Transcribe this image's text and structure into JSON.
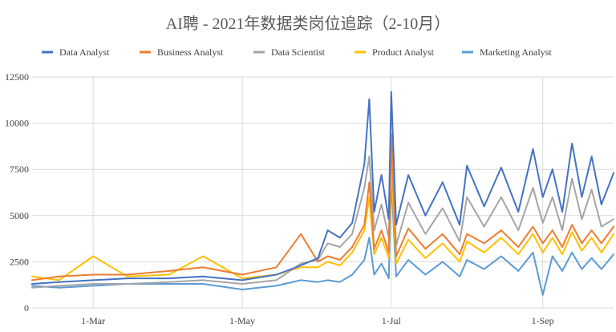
{
  "chart_data": {
    "type": "line",
    "title": "AI聘 - 2021年数据类岗位追踪（2-10月）",
    "xlabel": "",
    "ylabel": "",
    "x_start": "2021-02-04",
    "x_end": "2021-09-30",
    "xtick_labels": [
      "1-Mar",
      "1-May",
      "1-Jul",
      "1-Sep"
    ],
    "xtick_dates": [
      "2021-03-01",
      "2021-05-01",
      "2021-07-01",
      "2021-09-01"
    ],
    "ylim": [
      0,
      12500
    ],
    "yticks": [
      0,
      2500,
      5000,
      7500,
      10000,
      12500
    ],
    "ytick_labels": [
      "0",
      "2500",
      "5000",
      "7500",
      "10000",
      "12500"
    ],
    "grid": true,
    "legend_position": "top",
    "series": [
      {
        "name": "Data Analyst",
        "color": "#4472c4",
        "points": [
          [
            "2021-02-04",
            1300
          ],
          [
            "2021-02-15",
            1400
          ],
          [
            "2021-03-01",
            1500
          ],
          [
            "2021-03-15",
            1600
          ],
          [
            "2021-04-01",
            1600
          ],
          [
            "2021-04-15",
            1700
          ],
          [
            "2021-05-01",
            1500
          ],
          [
            "2021-05-15",
            1800
          ],
          [
            "2021-05-25",
            2300
          ],
          [
            "2021-06-01",
            2700
          ],
          [
            "2021-06-05",
            4200
          ],
          [
            "2021-06-10",
            3800
          ],
          [
            "2021-06-15",
            4600
          ],
          [
            "2021-06-20",
            7800
          ],
          [
            "2021-06-22",
            11300
          ],
          [
            "2021-06-24",
            5200
          ],
          [
            "2021-06-27",
            7200
          ],
          [
            "2021-06-30",
            4800
          ],
          [
            "2021-07-01",
            11700
          ],
          [
            "2021-07-03",
            4500
          ],
          [
            "2021-07-08",
            7200
          ],
          [
            "2021-07-15",
            5000
          ],
          [
            "2021-07-22",
            6800
          ],
          [
            "2021-07-29",
            4500
          ],
          [
            "2021-08-01",
            7700
          ],
          [
            "2021-08-08",
            5500
          ],
          [
            "2021-08-15",
            7600
          ],
          [
            "2021-08-22",
            5200
          ],
          [
            "2021-08-28",
            8600
          ],
          [
            "2021-09-01",
            6000
          ],
          [
            "2021-09-05",
            7500
          ],
          [
            "2021-09-09",
            5200
          ],
          [
            "2021-09-13",
            8900
          ],
          [
            "2021-09-17",
            6000
          ],
          [
            "2021-09-21",
            8200
          ],
          [
            "2021-09-25",
            5600
          ],
          [
            "2021-09-30",
            7300
          ]
        ]
      },
      {
        "name": "Business Analyst",
        "color": "#ed7d31",
        "points": [
          [
            "2021-02-04",
            1500
          ],
          [
            "2021-02-15",
            1700
          ],
          [
            "2021-03-01",
            1800
          ],
          [
            "2021-03-15",
            1800
          ],
          [
            "2021-04-01",
            2000
          ],
          [
            "2021-04-15",
            2200
          ],
          [
            "2021-05-01",
            1800
          ],
          [
            "2021-05-15",
            2200
          ],
          [
            "2021-05-25",
            4000
          ],
          [
            "2021-06-01",
            2500
          ],
          [
            "2021-06-05",
            2800
          ],
          [
            "2021-06-10",
            2600
          ],
          [
            "2021-06-15",
            3300
          ],
          [
            "2021-06-20",
            4500
          ],
          [
            "2021-06-22",
            6800
          ],
          [
            "2021-06-24",
            3200
          ],
          [
            "2021-06-27",
            4200
          ],
          [
            "2021-06-30",
            3000
          ],
          [
            "2021-07-01",
            9400
          ],
          [
            "2021-07-03",
            2800
          ],
          [
            "2021-07-08",
            4300
          ],
          [
            "2021-07-15",
            3200
          ],
          [
            "2021-07-22",
            4000
          ],
          [
            "2021-07-29",
            2900
          ],
          [
            "2021-08-01",
            4000
          ],
          [
            "2021-08-08",
            3500
          ],
          [
            "2021-08-15",
            4200
          ],
          [
            "2021-08-22",
            3300
          ],
          [
            "2021-08-28",
            4400
          ],
          [
            "2021-09-01",
            3500
          ],
          [
            "2021-09-05",
            4200
          ],
          [
            "2021-09-09",
            3300
          ],
          [
            "2021-09-13",
            4500
          ],
          [
            "2021-09-17",
            3500
          ],
          [
            "2021-09-21",
            4200
          ],
          [
            "2021-09-25",
            3500
          ],
          [
            "2021-09-30",
            4400
          ]
        ]
      },
      {
        "name": "Data Scientist",
        "color": "#a5a5a5",
        "points": [
          [
            "2021-02-04",
            1100
          ],
          [
            "2021-02-15",
            1200
          ],
          [
            "2021-03-01",
            1300
          ],
          [
            "2021-03-15",
            1300
          ],
          [
            "2021-04-01",
            1400
          ],
          [
            "2021-04-15",
            1500
          ],
          [
            "2021-05-01",
            1300
          ],
          [
            "2021-05-15",
            1500
          ],
          [
            "2021-05-25",
            2400
          ],
          [
            "2021-06-01",
            2600
          ],
          [
            "2021-06-05",
            3500
          ],
          [
            "2021-06-10",
            3300
          ],
          [
            "2021-06-15",
            4000
          ],
          [
            "2021-06-20",
            6500
          ],
          [
            "2021-06-22",
            8200
          ],
          [
            "2021-06-24",
            4200
          ],
          [
            "2021-06-27",
            5600
          ],
          [
            "2021-06-30",
            3800
          ],
          [
            "2021-07-01",
            8600
          ],
          [
            "2021-07-03",
            3400
          ],
          [
            "2021-07-08",
            5700
          ],
          [
            "2021-07-15",
            4000
          ],
          [
            "2021-07-22",
            5400
          ],
          [
            "2021-07-29",
            3600
          ],
          [
            "2021-08-01",
            6000
          ],
          [
            "2021-08-08",
            4400
          ],
          [
            "2021-08-15",
            6000
          ],
          [
            "2021-08-22",
            4200
          ],
          [
            "2021-08-28",
            6500
          ],
          [
            "2021-09-01",
            4600
          ],
          [
            "2021-09-05",
            6000
          ],
          [
            "2021-09-09",
            4200
          ],
          [
            "2021-09-13",
            7000
          ],
          [
            "2021-09-17",
            4800
          ],
          [
            "2021-09-21",
            6400
          ],
          [
            "2021-09-25",
            4400
          ],
          [
            "2021-09-30",
            4800
          ]
        ]
      },
      {
        "name": "Product Analyst",
        "color": "#ffc000",
        "points": [
          [
            "2021-02-04",
            1700
          ],
          [
            "2021-02-15",
            1500
          ],
          [
            "2021-03-01",
            2800
          ],
          [
            "2021-03-15",
            1700
          ],
          [
            "2021-04-01",
            1800
          ],
          [
            "2021-04-15",
            2800
          ],
          [
            "2021-05-01",
            1600
          ],
          [
            "2021-05-15",
            1800
          ],
          [
            "2021-05-25",
            2200
          ],
          [
            "2021-06-01",
            2200
          ],
          [
            "2021-06-05",
            2500
          ],
          [
            "2021-06-10",
            2300
          ],
          [
            "2021-06-15",
            3000
          ],
          [
            "2021-06-20",
            4200
          ],
          [
            "2021-06-22",
            6000
          ],
          [
            "2021-06-24",
            2900
          ],
          [
            "2021-06-27",
            3800
          ],
          [
            "2021-06-30",
            2700
          ],
          [
            "2021-07-01",
            7800
          ],
          [
            "2021-07-03",
            2400
          ],
          [
            "2021-07-08",
            3700
          ],
          [
            "2021-07-15",
            2700
          ],
          [
            "2021-07-22",
            3500
          ],
          [
            "2021-07-29",
            2500
          ],
          [
            "2021-08-01",
            3600
          ],
          [
            "2021-08-08",
            3000
          ],
          [
            "2021-08-15",
            3800
          ],
          [
            "2021-08-22",
            2900
          ],
          [
            "2021-08-28",
            4000
          ],
          [
            "2021-09-01",
            3000
          ],
          [
            "2021-09-05",
            3800
          ],
          [
            "2021-09-09",
            2900
          ],
          [
            "2021-09-13",
            4100
          ],
          [
            "2021-09-17",
            3100
          ],
          [
            "2021-09-21",
            3800
          ],
          [
            "2021-09-25",
            3000
          ],
          [
            "2021-09-30",
            4000
          ]
        ]
      },
      {
        "name": "Marketing Analyst",
        "color": "#5b9bd5",
        "points": [
          [
            "2021-02-04",
            1200
          ],
          [
            "2021-02-15",
            1100
          ],
          [
            "2021-03-01",
            1200
          ],
          [
            "2021-03-15",
            1300
          ],
          [
            "2021-04-01",
            1300
          ],
          [
            "2021-04-15",
            1300
          ],
          [
            "2021-05-01",
            1000
          ],
          [
            "2021-05-15",
            1200
          ],
          [
            "2021-05-25",
            1500
          ],
          [
            "2021-06-01",
            1400
          ],
          [
            "2021-06-05",
            1500
          ],
          [
            "2021-06-10",
            1400
          ],
          [
            "2021-06-15",
            1800
          ],
          [
            "2021-06-20",
            2600
          ],
          [
            "2021-06-22",
            3800
          ],
          [
            "2021-06-24",
            1800
          ],
          [
            "2021-06-27",
            2400
          ],
          [
            "2021-06-30",
            1600
          ],
          [
            "2021-07-01",
            7000
          ],
          [
            "2021-07-03",
            1700
          ],
          [
            "2021-07-08",
            2600
          ],
          [
            "2021-07-15",
            1800
          ],
          [
            "2021-07-22",
            2500
          ],
          [
            "2021-07-29",
            1700
          ],
          [
            "2021-08-01",
            2600
          ],
          [
            "2021-08-08",
            2100
          ],
          [
            "2021-08-15",
            2800
          ],
          [
            "2021-08-22",
            2000
          ],
          [
            "2021-08-28",
            3000
          ],
          [
            "2021-09-01",
            700
          ],
          [
            "2021-09-05",
            2800
          ],
          [
            "2021-09-09",
            2000
          ],
          [
            "2021-09-13",
            3000
          ],
          [
            "2021-09-17",
            2100
          ],
          [
            "2021-09-21",
            2700
          ],
          [
            "2021-09-25",
            2100
          ],
          [
            "2021-09-30",
            2900
          ]
        ]
      }
    ]
  }
}
